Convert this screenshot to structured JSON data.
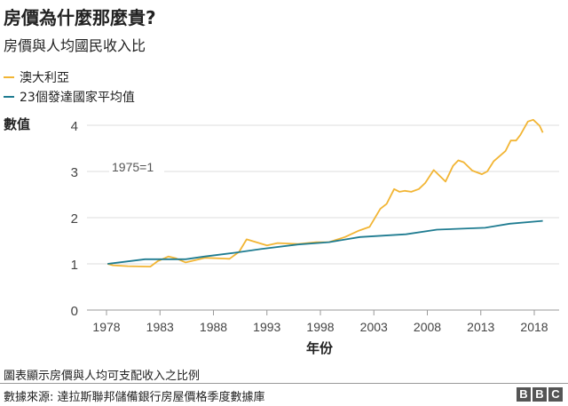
{
  "title": "房價為什麼那麼貴?",
  "subtitle": "房價與人均國民收入比",
  "footnote": "圖表顯示房價與人均可支配收入之比例",
  "source": "數據來源: 達拉斯聯邦儲備銀行房屋價格季度數據庫",
  "logo": [
    "B",
    "B",
    "C"
  ],
  "chart_data": {
    "type": "line",
    "ylabel": "數值",
    "xlabel": "年份",
    "annotation": "1975=1",
    "xlim": [
      1976.5,
      2020.5
    ],
    "ylim": [
      0,
      4
    ],
    "yticks": [
      0,
      1,
      2,
      3,
      4
    ],
    "xticks": [
      1978,
      1983,
      1988,
      1993,
      1998,
      2003,
      2008,
      2013,
      2018
    ],
    "grid": true,
    "legend_position": "top-left",
    "series": [
      {
        "name": "澳大利亞",
        "color": "#f2b534",
        "x": [
          1978.1,
          1978.6,
          1980,
          1982.1,
          1982.8,
          1983.8,
          1984.5,
          1985.4,
          1987.2,
          1989.5,
          1990.4,
          1991.1,
          1993.0,
          1994.0,
          1995.9,
          1997.6,
          1998.8,
          2000.3,
          2001.6,
          2002.6,
          2003.6,
          2004.2,
          2004.9,
          2005.4,
          2005.9,
          2006.5,
          2007.2,
          2007.8,
          2008.6,
          2009.7,
          2010.4,
          2010.9,
          2011.4,
          2012.2,
          2013.1,
          2013.6,
          2014.2,
          2015.3,
          2015.8,
          2016.3,
          2016.7,
          2017.4,
          2017.9,
          2018.5,
          2018.8
        ],
        "y": [
          1.0,
          0.97,
          0.95,
          0.94,
          1.06,
          1.16,
          1.12,
          1.03,
          1.13,
          1.11,
          1.26,
          1.53,
          1.4,
          1.45,
          1.43,
          1.47,
          1.47,
          1.58,
          1.72,
          1.8,
          2.19,
          2.3,
          2.62,
          2.56,
          2.58,
          2.56,
          2.62,
          2.75,
          3.03,
          2.78,
          3.12,
          3.24,
          3.2,
          3.02,
          2.94,
          3.0,
          3.22,
          3.44,
          3.67,
          3.67,
          3.79,
          4.08,
          4.12,
          3.99,
          3.84
        ]
      },
      {
        "name": "23個發達國家平均值",
        "color": "#1f7c91",
        "x": [
          1978.1,
          1981.6,
          1985.4,
          1987.2,
          1990.0,
          1992.4,
          1995.9,
          1998.8,
          2001.7,
          2006.0,
          2008.9,
          2013.4,
          2015.7,
          2018.8
        ],
        "y": [
          1.0,
          1.1,
          1.1,
          1.16,
          1.24,
          1.32,
          1.42,
          1.47,
          1.58,
          1.64,
          1.74,
          1.78,
          1.87,
          1.93
        ]
      }
    ]
  }
}
